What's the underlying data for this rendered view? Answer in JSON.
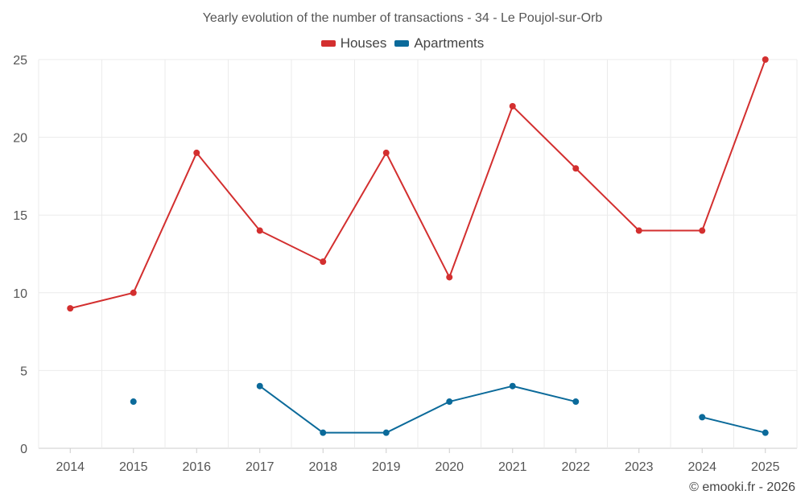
{
  "chart_data": {
    "type": "line",
    "title": "Yearly evolution of the number of transactions - 34 - Le Poujol-sur-Orb",
    "xlabel": "",
    "ylabel": "",
    "categories": [
      "2014",
      "2015",
      "2016",
      "2017",
      "2018",
      "2019",
      "2020",
      "2021",
      "2022",
      "2023",
      "2024",
      "2025"
    ],
    "ylim": [
      0,
      25
    ],
    "yticks": [
      0,
      5,
      10,
      15,
      20,
      25
    ],
    "grid": true,
    "legend_position": "top-center",
    "series": [
      {
        "name": "Houses",
        "color": "#d32f2f",
        "values": [
          9,
          10,
          19,
          14,
          12,
          19,
          11,
          22,
          18,
          14,
          14,
          25
        ]
      },
      {
        "name": "Apartments",
        "color": "#0b6a9a",
        "values": [
          null,
          3,
          null,
          4,
          1,
          1,
          3,
          4,
          3,
          null,
          2,
          1
        ]
      }
    ]
  },
  "credit": "© emooki.fr - 2026"
}
